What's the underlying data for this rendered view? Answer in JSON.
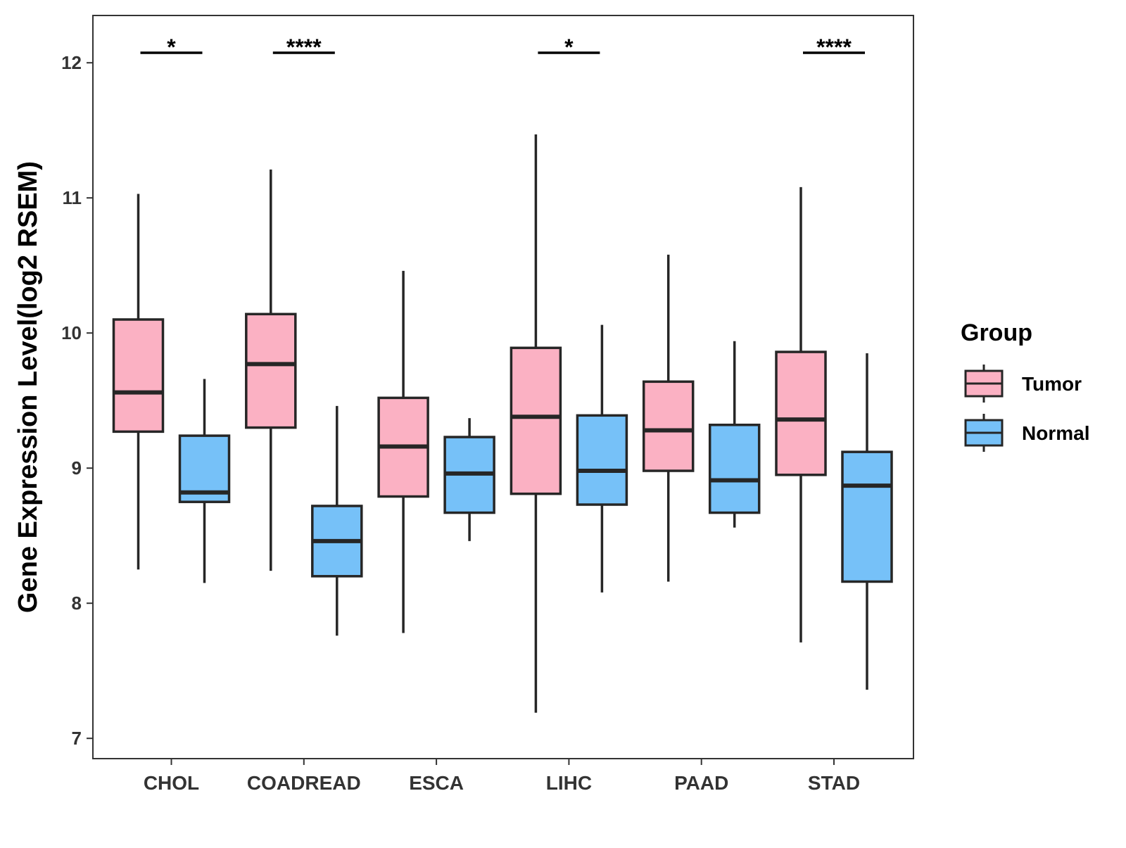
{
  "chart_data": {
    "type": "box",
    "title": "",
    "xlabel": "",
    "ylabel": "Gene Expression Level(log2 RSEM)",
    "ylim": [
      6.85,
      12.35
    ],
    "yticks": [
      7,
      8,
      9,
      10,
      11,
      12
    ],
    "categories": [
      "CHOL",
      "COADREAD",
      "ESCA",
      "LIHC",
      "PAAD",
      "STAD"
    ],
    "grid": false,
    "legend": {
      "title": "Group",
      "position": "right",
      "entries": [
        "Tumor",
        "Normal"
      ]
    },
    "colors": {
      "Tumor": "#FBB1C3",
      "Normal": "#76C1F8",
      "outline": "#262626"
    },
    "series": [
      {
        "name": "Tumor",
        "boxes": [
          {
            "min": 8.25,
            "q1": 9.27,
            "median": 9.56,
            "q3": 10.1,
            "max": 11.03
          },
          {
            "min": 8.24,
            "q1": 9.3,
            "median": 9.77,
            "q3": 10.14,
            "max": 11.21
          },
          {
            "min": 7.78,
            "q1": 8.79,
            "median": 9.16,
            "q3": 9.52,
            "max": 10.46
          },
          {
            "min": 7.19,
            "q1": 8.81,
            "median": 9.38,
            "q3": 9.89,
            "max": 11.47
          },
          {
            "min": 8.16,
            "q1": 8.98,
            "median": 9.28,
            "q3": 9.64,
            "max": 10.58
          },
          {
            "min": 7.71,
            "q1": 8.95,
            "median": 9.36,
            "q3": 9.86,
            "max": 11.08
          }
        ]
      },
      {
        "name": "Normal",
        "boxes": [
          {
            "min": 8.15,
            "q1": 8.75,
            "median": 8.82,
            "q3": 9.24,
            "max": 9.66
          },
          {
            "min": 7.76,
            "q1": 8.2,
            "median": 8.46,
            "q3": 8.72,
            "max": 9.46
          },
          {
            "min": 8.46,
            "q1": 8.67,
            "median": 8.96,
            "q3": 9.23,
            "max": 9.37
          },
          {
            "min": 8.08,
            "q1": 8.73,
            "median": 8.98,
            "q3": 9.39,
            "max": 10.06
          },
          {
            "min": 8.56,
            "q1": 8.67,
            "median": 8.91,
            "q3": 9.32,
            "max": 9.94
          },
          {
            "min": 7.36,
            "q1": 8.16,
            "median": 8.87,
            "q3": 9.12,
            "max": 9.85
          }
        ]
      }
    ],
    "annotations": [
      {
        "category": "CHOL",
        "label": "*"
      },
      {
        "category": "COADREAD",
        "label": "****"
      },
      {
        "category": "LIHC",
        "label": "*"
      },
      {
        "category": "STAD",
        "label": "****"
      }
    ]
  }
}
